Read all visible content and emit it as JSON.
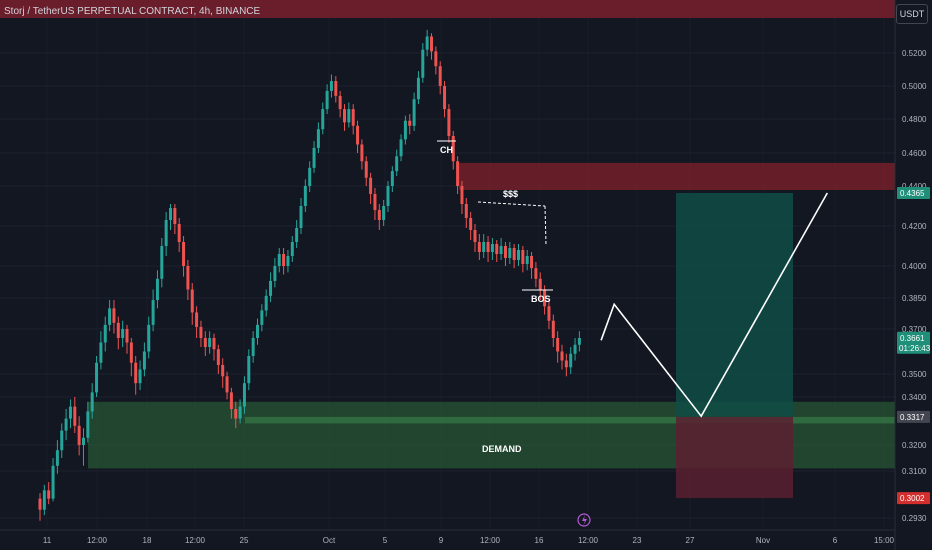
{
  "header": {
    "title": "Storj / TetherUS PERPETUAL CONTRACT, 4h, BINANCE",
    "currency": "USDT"
  },
  "colors": {
    "background": "#131722",
    "up": "#26a69a",
    "down": "#ef5350",
    "supply_zone": "#7a1f2b",
    "demand_zone": "#2e6b3a",
    "target_zone": "#0f4c45",
    "stop_zone": "#5a2030"
  },
  "chart_data": {
    "type": "candlestick",
    "title": "Storj / TetherUS PERPETUAL CONTRACT, 4h, BINANCE",
    "y_ticks": [
      0.52,
      0.5,
      0.48,
      0.46,
      0.44,
      0.42,
      0.4,
      0.385,
      0.37,
      0.35,
      0.34,
      0.32,
      0.31,
      0.293
    ],
    "y_tick_labels": [
      "0.5200",
      "0.5000",
      "0.4800",
      "0.4600",
      "0.4400",
      "0.4200",
      "0.4000",
      "0.3850",
      "0.3700",
      "0.3500",
      "0.3400",
      "0.3200",
      "0.3100",
      "0.2930"
    ],
    "x_tick_labels": [
      "11",
      "12:00",
      "18",
      "12:00",
      "25",
      "Oct",
      "5",
      "9",
      "12:00",
      "16",
      "12:00",
      "23",
      "27",
      "Nov",
      "6",
      "15:00"
    ],
    "price_tags": [
      {
        "label": "0.4365",
        "value": 0.4365,
        "style": "target"
      },
      {
        "label": "0.3661",
        "value": 0.3661,
        "style": "current",
        "countdown": "01:26:43"
      },
      {
        "label": "0.3317",
        "value": 0.3317,
        "style": "entry"
      },
      {
        "label": "0.3002",
        "value": 0.3002,
        "style": "stop"
      }
    ],
    "zones": [
      {
        "name": "supply",
        "from": 0.438,
        "to": 0.454
      },
      {
        "name": "demand",
        "from": 0.311,
        "to": 0.338,
        "label": "DEMAND"
      },
      {
        "name": "target",
        "from": 0.3317,
        "to": 0.4365
      },
      {
        "name": "stop",
        "from": 0.3002,
        "to": 0.3317
      }
    ],
    "annotations": [
      {
        "label": "CH"
      },
      {
        "label": "$$$"
      },
      {
        "label": "BOS"
      },
      {
        "label": "DEMAND"
      }
    ],
    "candles": [
      [
        0.3,
        0.296,
        0.302,
        0.292
      ],
      [
        0.296,
        0.303,
        0.305,
        0.294
      ],
      [
        0.303,
        0.3,
        0.306,
        0.298
      ],
      [
        0.3,
        0.312,
        0.315,
        0.299
      ],
      [
        0.312,
        0.318,
        0.322,
        0.309
      ],
      [
        0.318,
        0.326,
        0.329,
        0.315
      ],
      [
        0.326,
        0.331,
        0.335,
        0.322
      ],
      [
        0.331,
        0.336,
        0.339,
        0.327
      ],
      [
        0.336,
        0.328,
        0.34,
        0.325
      ],
      [
        0.328,
        0.32,
        0.332,
        0.316
      ],
      [
        0.32,
        0.323,
        0.327,
        0.312
      ],
      [
        0.323,
        0.334,
        0.338,
        0.321
      ],
      [
        0.334,
        0.342,
        0.346,
        0.331
      ],
      [
        0.342,
        0.355,
        0.358,
        0.34
      ],
      [
        0.355,
        0.364,
        0.369,
        0.352
      ],
      [
        0.364,
        0.372,
        0.376,
        0.36
      ],
      [
        0.372,
        0.38,
        0.384,
        0.369
      ],
      [
        0.38,
        0.373,
        0.384,
        0.368
      ],
      [
        0.373,
        0.366,
        0.376,
        0.361
      ],
      [
        0.366,
        0.37,
        0.374,
        0.362
      ],
      [
        0.37,
        0.364,
        0.372,
        0.359
      ],
      [
        0.364,
        0.355,
        0.366,
        0.349
      ],
      [
        0.355,
        0.346,
        0.358,
        0.341
      ],
      [
        0.346,
        0.352,
        0.356,
        0.343
      ],
      [
        0.352,
        0.36,
        0.364,
        0.349
      ],
      [
        0.36,
        0.372,
        0.376,
        0.357
      ],
      [
        0.372,
        0.384,
        0.389,
        0.369
      ],
      [
        0.384,
        0.394,
        0.398,
        0.38
      ],
      [
        0.394,
        0.41,
        0.414,
        0.39
      ],
      [
        0.41,
        0.423,
        0.427,
        0.405
      ],
      [
        0.423,
        0.429,
        0.431,
        0.418
      ],
      [
        0.429,
        0.421,
        0.431,
        0.416
      ],
      [
        0.421,
        0.412,
        0.424,
        0.407
      ],
      [
        0.412,
        0.4,
        0.415,
        0.395
      ],
      [
        0.4,
        0.389,
        0.403,
        0.384
      ],
      [
        0.389,
        0.378,
        0.392,
        0.372
      ],
      [
        0.378,
        0.371,
        0.381,
        0.366
      ],
      [
        0.371,
        0.366,
        0.374,
        0.362
      ],
      [
        0.366,
        0.362,
        0.369,
        0.358
      ],
      [
        0.362,
        0.366,
        0.369,
        0.359
      ],
      [
        0.366,
        0.361,
        0.368,
        0.356
      ],
      [
        0.361,
        0.354,
        0.363,
        0.35
      ],
      [
        0.354,
        0.349,
        0.357,
        0.344
      ],
      [
        0.349,
        0.342,
        0.351,
        0.339
      ],
      [
        0.342,
        0.335,
        0.344,
        0.331
      ],
      [
        0.335,
        0.331,
        0.338,
        0.327
      ],
      [
        0.331,
        0.336,
        0.339,
        0.329
      ],
      [
        0.336,
        0.346,
        0.349,
        0.333
      ],
      [
        0.346,
        0.358,
        0.361,
        0.343
      ],
      [
        0.358,
        0.366,
        0.369,
        0.355
      ],
      [
        0.366,
        0.372,
        0.375,
        0.363
      ],
      [
        0.372,
        0.379,
        0.382,
        0.369
      ],
      [
        0.379,
        0.386,
        0.389,
        0.376
      ],
      [
        0.386,
        0.393,
        0.397,
        0.383
      ],
      [
        0.393,
        0.4,
        0.404,
        0.39
      ],
      [
        0.4,
        0.406,
        0.409,
        0.397
      ],
      [
        0.406,
        0.4,
        0.409,
        0.396
      ],
      [
        0.4,
        0.405,
        0.408,
        0.397
      ],
      [
        0.405,
        0.412,
        0.415,
        0.402
      ],
      [
        0.412,
        0.419,
        0.423,
        0.409
      ],
      [
        0.419,
        0.43,
        0.434,
        0.416
      ],
      [
        0.43,
        0.44,
        0.444,
        0.427
      ],
      [
        0.44,
        0.451,
        0.455,
        0.437
      ],
      [
        0.451,
        0.463,
        0.467,
        0.448
      ],
      [
        0.463,
        0.474,
        0.478,
        0.46
      ],
      [
        0.474,
        0.486,
        0.49,
        0.471
      ],
      [
        0.486,
        0.497,
        0.501,
        0.483
      ],
      [
        0.497,
        0.503,
        0.507,
        0.493
      ],
      [
        0.503,
        0.494,
        0.506,
        0.49
      ],
      [
        0.494,
        0.486,
        0.497,
        0.481
      ],
      [
        0.486,
        0.478,
        0.489,
        0.473
      ],
      [
        0.478,
        0.486,
        0.49,
        0.475
      ],
      [
        0.486,
        0.476,
        0.489,
        0.471
      ],
      [
        0.476,
        0.465,
        0.479,
        0.46
      ],
      [
        0.465,
        0.455,
        0.468,
        0.45
      ],
      [
        0.455,
        0.445,
        0.458,
        0.44
      ],
      [
        0.445,
        0.436,
        0.448,
        0.431
      ],
      [
        0.436,
        0.428,
        0.439,
        0.423
      ],
      [
        0.428,
        0.423,
        0.431,
        0.418
      ],
      [
        0.423,
        0.43,
        0.433,
        0.42
      ],
      [
        0.43,
        0.44,
        0.443,
        0.427
      ],
      [
        0.44,
        0.449,
        0.452,
        0.437
      ],
      [
        0.449,
        0.458,
        0.462,
        0.446
      ],
      [
        0.458,
        0.468,
        0.471,
        0.455
      ],
      [
        0.468,
        0.479,
        0.482,
        0.465
      ],
      [
        0.479,
        0.476,
        0.483,
        0.471
      ],
      [
        0.476,
        0.492,
        0.496,
        0.473
      ],
      [
        0.492,
        0.505,
        0.509,
        0.489
      ],
      [
        0.505,
        0.522,
        0.526,
        0.502
      ],
      [
        0.522,
        0.53,
        0.534,
        0.518
      ],
      [
        0.53,
        0.521,
        0.532,
        0.516
      ],
      [
        0.521,
        0.512,
        0.524,
        0.507
      ],
      [
        0.512,
        0.5,
        0.515,
        0.495
      ],
      [
        0.5,
        0.486,
        0.503,
        0.481
      ],
      [
        0.486,
        0.47,
        0.489,
        0.466
      ],
      [
        0.47,
        0.455,
        0.473,
        0.45
      ],
      [
        0.455,
        0.44,
        0.458,
        0.436
      ],
      [
        0.44,
        0.431,
        0.443,
        0.426
      ],
      [
        0.431,
        0.424,
        0.434,
        0.419
      ],
      [
        0.424,
        0.418,
        0.427,
        0.413
      ],
      [
        0.418,
        0.412,
        0.421,
        0.407
      ],
      [
        0.412,
        0.407,
        0.416,
        0.403
      ],
      [
        0.407,
        0.412,
        0.416,
        0.404
      ],
      [
        0.412,
        0.407,
        0.415,
        0.402
      ],
      [
        0.407,
        0.411,
        0.414,
        0.403
      ],
      [
        0.411,
        0.406,
        0.413,
        0.402
      ],
      [
        0.406,
        0.41,
        0.414,
        0.403
      ],
      [
        0.41,
        0.404,
        0.412,
        0.4
      ],
      [
        0.404,
        0.409,
        0.412,
        0.401
      ],
      [
        0.409,
        0.403,
        0.411,
        0.399
      ],
      [
        0.403,
        0.408,
        0.411,
        0.4
      ],
      [
        0.408,
        0.401,
        0.41,
        0.397
      ],
      [
        0.401,
        0.405,
        0.408,
        0.398
      ],
      [
        0.405,
        0.399,
        0.407,
        0.394
      ],
      [
        0.399,
        0.394,
        0.402,
        0.39
      ],
      [
        0.394,
        0.389,
        0.397,
        0.384
      ],
      [
        0.389,
        0.381,
        0.391,
        0.377
      ],
      [
        0.381,
        0.374,
        0.384,
        0.37
      ],
      [
        0.374,
        0.366,
        0.377,
        0.362
      ],
      [
        0.366,
        0.36,
        0.369,
        0.355
      ],
      [
        0.36,
        0.356,
        0.363,
        0.352
      ],
      [
        0.356,
        0.353,
        0.359,
        0.349
      ],
      [
        0.353,
        0.359,
        0.362,
        0.35
      ],
      [
        0.359,
        0.363,
        0.366,
        0.356
      ],
      [
        0.363,
        0.366,
        0.369,
        0.36
      ]
    ],
    "projection": [
      {
        "bar": 129,
        "value": 0.365
      },
      {
        "bar": 132,
        "value": 0.382
      },
      {
        "bar": 152,
        "value": 0.332
      },
      {
        "bar": 181,
        "value": 0.4365
      }
    ]
  }
}
